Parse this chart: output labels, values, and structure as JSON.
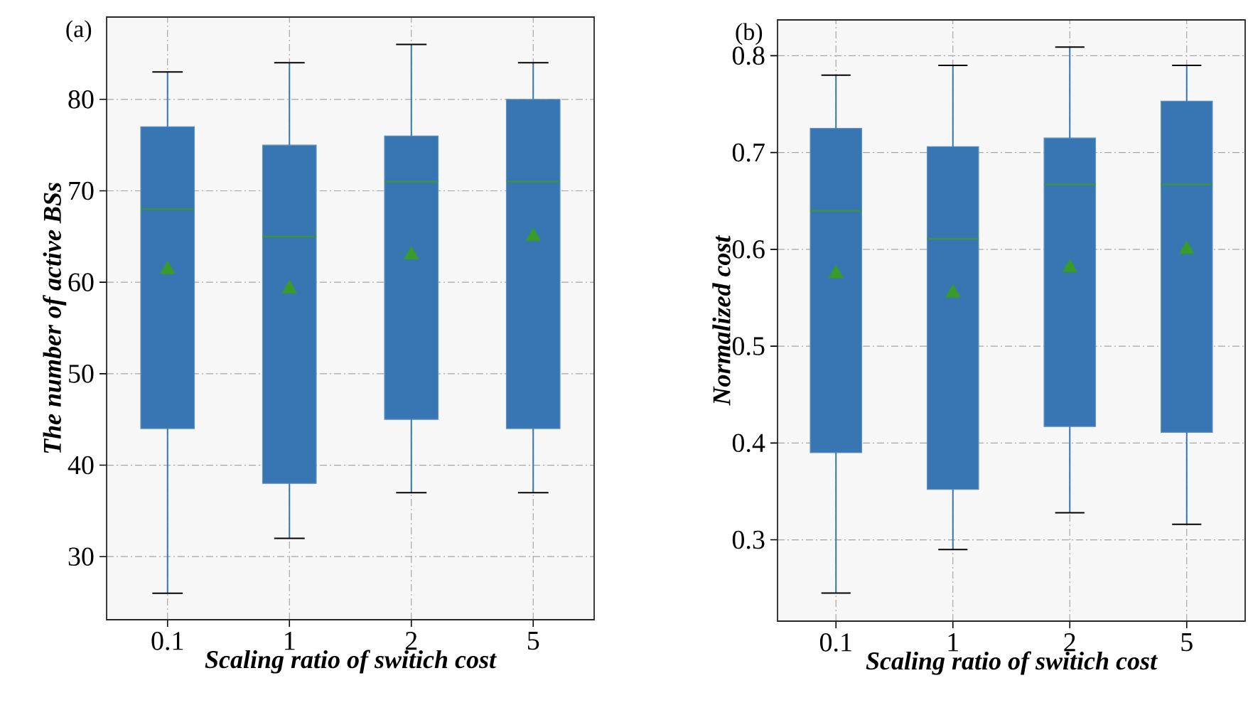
{
  "chart_data": [
    {
      "type": "box",
      "annotations": [
        "(a)"
      ],
      "xlabel": "Scaling ratio of switich cost",
      "ylabel": "The number of active BSs",
      "categories": [
        "0.1",
        "1",
        "2",
        "5"
      ],
      "color": "#3776b3",
      "grid": true,
      "ylim": [
        23.1,
        89
      ],
      "yticks": [
        30,
        40,
        50,
        60,
        70,
        80
      ],
      "boxes": [
        {
          "low": 26,
          "q1": 44,
          "median": 68,
          "q3": 77,
          "high": 83,
          "mean": 61.4
        },
        {
          "low": 32,
          "q1": 38,
          "median": 65,
          "q3": 75,
          "high": 84,
          "mean": 59.3
        },
        {
          "low": 37,
          "q1": 45,
          "median": 71,
          "q3": 76,
          "high": 86,
          "mean": 63
        },
        {
          "low": 37,
          "q1": 44,
          "median": 71,
          "q3": 80,
          "high": 84,
          "mean": 65
        }
      ]
    },
    {
      "type": "box",
      "annotations": [
        "(b)"
      ],
      "xlabel": "Scaling ratio of switich cost",
      "ylabel": "Normalized cost",
      "categories": [
        "0.1",
        "1",
        "2",
        "5"
      ],
      "color": "#3776b3",
      "grid": true,
      "ylim": [
        0.216,
        0.837
      ],
      "yticks": [
        0.3,
        0.4,
        0.5,
        0.6,
        0.7,
        0.8
      ],
      "boxes": [
        {
          "low": 0.245,
          "q1": 0.39,
          "median": 0.64,
          "q3": 0.725,
          "high": 0.78,
          "mean": 0.575
        },
        {
          "low": 0.29,
          "q1": 0.352,
          "median": 0.611,
          "q3": 0.706,
          "high": 0.79,
          "mean": 0.555
        },
        {
          "low": 0.328,
          "q1": 0.417,
          "median": 0.667,
          "q3": 0.715,
          "high": 0.809,
          "mean": 0.581
        },
        {
          "low": 0.316,
          "q1": 0.411,
          "median": 0.667,
          "q3": 0.753,
          "high": 0.79,
          "mean": 0.6
        }
      ]
    }
  ]
}
